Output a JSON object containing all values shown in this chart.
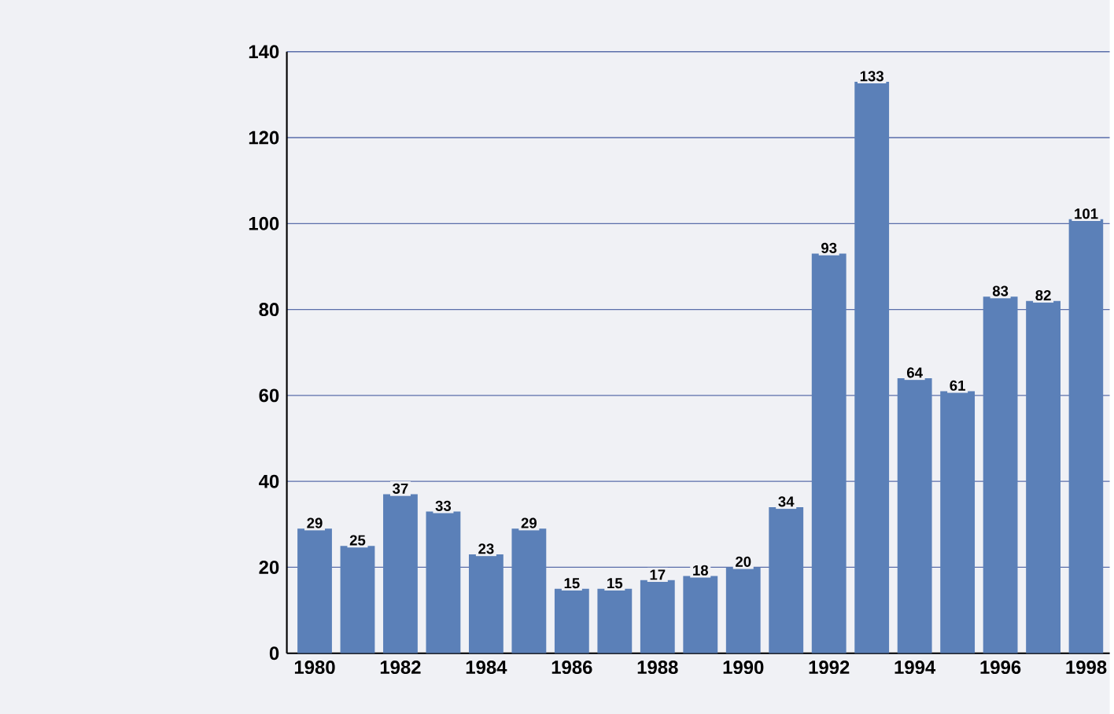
{
  "chart_data": {
    "type": "bar",
    "categories": [
      "1980",
      null,
      "1982",
      null,
      "1984",
      null,
      "1986",
      null,
      "1988",
      null,
      "1990",
      null,
      "1992",
      null,
      "1994",
      null,
      "1996",
      null,
      "1998"
    ],
    "values": [
      29,
      25,
      37,
      33,
      23,
      29,
      15,
      15,
      17,
      18,
      20,
      34,
      93,
      133,
      64,
      61,
      83,
      82,
      101
    ],
    "color": "#5b80b8",
    "ylim": [
      0,
      140
    ],
    "yticks": [
      0,
      20,
      40,
      60,
      80,
      100,
      120,
      140
    ],
    "grid": "y",
    "data_labels": true
  }
}
